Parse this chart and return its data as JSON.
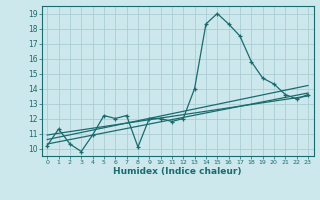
{
  "title": "",
  "xlabel": "Humidex (Indice chaleur)",
  "ylabel": "",
  "background_color": "#cce8ec",
  "grid_color": "#aacdd4",
  "line_color": "#1a6b6e",
  "xlim": [
    -0.5,
    23.5
  ],
  "ylim": [
    9.5,
    19.5
  ],
  "yticks": [
    10,
    11,
    12,
    13,
    14,
    15,
    16,
    17,
    18,
    19
  ],
  "xticks": [
    0,
    1,
    2,
    3,
    4,
    5,
    6,
    7,
    8,
    9,
    10,
    11,
    12,
    13,
    14,
    15,
    16,
    17,
    18,
    19,
    20,
    21,
    22,
    23
  ],
  "series1_x": [
    0,
    1,
    2,
    3,
    4,
    5,
    6,
    7,
    8,
    9,
    10,
    11,
    12,
    13,
    14,
    15,
    16,
    17,
    18,
    19,
    20,
    21,
    22,
    23
  ],
  "series1_y": [
    10.2,
    11.3,
    10.3,
    9.8,
    10.9,
    12.2,
    12.0,
    12.2,
    10.1,
    12.0,
    12.0,
    11.8,
    12.0,
    14.0,
    18.3,
    19.0,
    18.3,
    17.5,
    15.8,
    14.7,
    14.3,
    13.6,
    13.3,
    13.6
  ],
  "series2_x": [
    0,
    23
  ],
  "series2_y": [
    10.3,
    13.7
  ],
  "series3_x": [
    0,
    23
  ],
  "series3_y": [
    10.6,
    14.2
  ],
  "series4_x": [
    0,
    23
  ],
  "series4_y": [
    10.9,
    13.5
  ]
}
